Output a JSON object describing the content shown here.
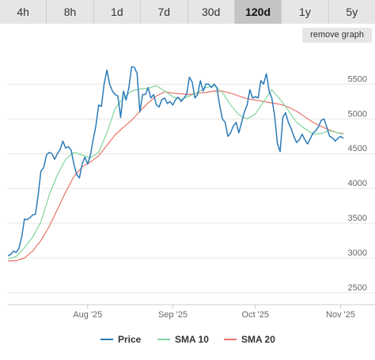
{
  "tabs": [
    {
      "label": "4h",
      "active": false
    },
    {
      "label": "8h",
      "active": false
    },
    {
      "label": "1d",
      "active": false
    },
    {
      "label": "7d",
      "active": false
    },
    {
      "label": "30d",
      "active": false
    },
    {
      "label": "120d",
      "active": true
    },
    {
      "label": "1y",
      "active": false
    },
    {
      "label": "5y",
      "active": false
    }
  ],
  "remove_graph_label": "remove graph",
  "colors": {
    "price": "#2b7bb9",
    "sma10": "#7fd49a",
    "sma20": "#e8746a"
  },
  "chart_data": {
    "type": "line",
    "title": "",
    "xlabel": "",
    "ylabel": "",
    "x_ticks": [
      {
        "label": "Aug '25",
        "date": "2025-08-01"
      },
      {
        "label": "Sep '25",
        "date": "2025-09-01"
      },
      {
        "label": "Oct '25",
        "date": "2025-10-01"
      },
      {
        "label": "Nov '25",
        "date": "2025-11-01"
      }
    ],
    "y_ticks": [
      2500,
      3000,
      3500,
      4000,
      4500,
      5000,
      5500
    ],
    "ylim": [
      2330,
      5970
    ],
    "xlim": [
      "2025-07-03",
      "2025-11-02"
    ],
    "grid": true,
    "legend_position": "bottom",
    "series": [
      {
        "name": "Price",
        "color_key": "price",
        "points": [
          [
            "2025-07-03",
            3030
          ],
          [
            "2025-07-04",
            3050
          ],
          [
            "2025-07-05",
            3100
          ],
          [
            "2025-07-06",
            3080
          ],
          [
            "2025-07-07",
            3140
          ],
          [
            "2025-07-08",
            3300
          ],
          [
            "2025-07-09",
            3560
          ],
          [
            "2025-07-10",
            3550
          ],
          [
            "2025-07-11",
            3580
          ],
          [
            "2025-07-12",
            3620
          ],
          [
            "2025-07-13",
            3630
          ],
          [
            "2025-07-14",
            3900
          ],
          [
            "2025-07-15",
            4250
          ],
          [
            "2025-07-16",
            4300
          ],
          [
            "2025-07-17",
            4480
          ],
          [
            "2025-07-18",
            4520
          ],
          [
            "2025-07-19",
            4500
          ],
          [
            "2025-07-20",
            4420
          ],
          [
            "2025-07-21",
            4500
          ],
          [
            "2025-07-22",
            4560
          ],
          [
            "2025-07-23",
            4680
          ],
          [
            "2025-07-24",
            4580
          ],
          [
            "2025-07-25",
            4600
          ],
          [
            "2025-07-26",
            4550
          ],
          [
            "2025-07-27",
            4350
          ],
          [
            "2025-07-28",
            4200
          ],
          [
            "2025-07-29",
            4150
          ],
          [
            "2025-07-30",
            4350
          ],
          [
            "2025-07-31",
            4450
          ],
          [
            "2025-08-01",
            4350
          ],
          [
            "2025-08-02",
            4480
          ],
          [
            "2025-08-03",
            4700
          ],
          [
            "2025-08-04",
            4900
          ],
          [
            "2025-08-05",
            5200
          ],
          [
            "2025-08-06",
            5180
          ],
          [
            "2025-08-07",
            5500
          ],
          [
            "2025-08-08",
            5700
          ],
          [
            "2025-08-09",
            5500
          ],
          [
            "2025-08-10",
            5400
          ],
          [
            "2025-08-11",
            5350
          ],
          [
            "2025-08-12",
            5330
          ],
          [
            "2025-08-13",
            5020
          ],
          [
            "2025-08-14",
            5400
          ],
          [
            "2025-08-15",
            5270
          ],
          [
            "2025-08-16",
            5450
          ],
          [
            "2025-08-17",
            5750
          ],
          [
            "2025-08-18",
            5740
          ],
          [
            "2025-08-19",
            5650
          ],
          [
            "2025-08-20",
            5100
          ],
          [
            "2025-08-21",
            5350
          ],
          [
            "2025-08-22",
            5350
          ],
          [
            "2025-08-23",
            5450
          ],
          [
            "2025-08-24",
            5300
          ],
          [
            "2025-08-25",
            5350
          ],
          [
            "2025-08-26",
            5200
          ],
          [
            "2025-08-27",
            5170
          ],
          [
            "2025-08-28",
            5280
          ],
          [
            "2025-08-29",
            5300
          ],
          [
            "2025-08-30",
            5220
          ],
          [
            "2025-08-31",
            5250
          ],
          [
            "2025-09-01",
            5200
          ],
          [
            "2025-09-02",
            5280
          ],
          [
            "2025-09-03",
            5310
          ],
          [
            "2025-09-04",
            5250
          ],
          [
            "2025-09-05",
            5300
          ],
          [
            "2025-09-06",
            5350
          ],
          [
            "2025-09-07",
            5600
          ],
          [
            "2025-09-08",
            5530
          ],
          [
            "2025-09-09",
            5300
          ],
          [
            "2025-09-10",
            5350
          ],
          [
            "2025-09-11",
            5550
          ],
          [
            "2025-09-12",
            5400
          ],
          [
            "2025-09-13",
            5500
          ],
          [
            "2025-09-14",
            5500
          ],
          [
            "2025-09-15",
            5450
          ],
          [
            "2025-09-16",
            5500
          ],
          [
            "2025-09-17",
            5450
          ],
          [
            "2025-09-18",
            5200
          ],
          [
            "2025-09-19",
            5000
          ],
          [
            "2025-09-20",
            4950
          ],
          [
            "2025-09-21",
            4750
          ],
          [
            "2025-09-22",
            4800
          ],
          [
            "2025-09-23",
            4900
          ],
          [
            "2025-09-24",
            4950
          ],
          [
            "2025-09-25",
            4800
          ],
          [
            "2025-09-26",
            4950
          ],
          [
            "2025-09-27",
            5100
          ],
          [
            "2025-09-28",
            5200
          ],
          [
            "2025-09-29",
            5420
          ],
          [
            "2025-09-30",
            5300
          ],
          [
            "2025-10-01",
            5320
          ],
          [
            "2025-10-02",
            5300
          ],
          [
            "2025-10-03",
            5550
          ],
          [
            "2025-10-04",
            5500
          ],
          [
            "2025-10-05",
            5650
          ],
          [
            "2025-10-06",
            5400
          ],
          [
            "2025-10-07",
            5300
          ],
          [
            "2025-10-08",
            5050
          ],
          [
            "2025-10-09",
            4650
          ],
          [
            "2025-10-10",
            4530
          ],
          [
            "2025-10-11",
            5020
          ],
          [
            "2025-10-12",
            5090
          ],
          [
            "2025-10-13",
            4950
          ],
          [
            "2025-10-14",
            4860
          ],
          [
            "2025-10-15",
            4750
          ],
          [
            "2025-10-16",
            4660
          ],
          [
            "2025-10-17",
            4700
          ],
          [
            "2025-10-18",
            4780
          ],
          [
            "2025-10-19",
            4700
          ],
          [
            "2025-10-20",
            4640
          ],
          [
            "2025-10-21",
            4720
          ],
          [
            "2025-10-22",
            4800
          ],
          [
            "2025-10-23",
            4830
          ],
          [
            "2025-10-24",
            4890
          ],
          [
            "2025-10-25",
            4980
          ],
          [
            "2025-10-26",
            5000
          ],
          [
            "2025-10-27",
            4880
          ],
          [
            "2025-10-28",
            4750
          ],
          [
            "2025-10-29",
            4730
          ],
          [
            "2025-10-30",
            4680
          ],
          [
            "2025-10-31",
            4720
          ],
          [
            "2025-11-01",
            4750
          ],
          [
            "2025-11-02",
            4720
          ]
        ]
      },
      {
        "name": "SMA 10",
        "color_key": "sma10",
        "points": [
          [
            "2025-07-03",
            2990
          ],
          [
            "2025-07-06",
            3020
          ],
          [
            "2025-07-09",
            3150
          ],
          [
            "2025-07-12",
            3300
          ],
          [
            "2025-07-15",
            3520
          ],
          [
            "2025-07-18",
            3900
          ],
          [
            "2025-07-21",
            4200
          ],
          [
            "2025-07-24",
            4420
          ],
          [
            "2025-07-27",
            4520
          ],
          [
            "2025-07-30",
            4480
          ],
          [
            "2025-08-02",
            4440
          ],
          [
            "2025-08-05",
            4520
          ],
          [
            "2025-08-08",
            4800
          ],
          [
            "2025-08-11",
            5150
          ],
          [
            "2025-08-14",
            5300
          ],
          [
            "2025-08-17",
            5400
          ],
          [
            "2025-08-20",
            5430
          ],
          [
            "2025-08-23",
            5440
          ],
          [
            "2025-08-26",
            5480
          ],
          [
            "2025-08-29",
            5400
          ],
          [
            "2025-09-01",
            5320
          ],
          [
            "2025-09-04",
            5280
          ],
          [
            "2025-09-07",
            5330
          ],
          [
            "2025-09-10",
            5380
          ],
          [
            "2025-09-13",
            5450
          ],
          [
            "2025-09-16",
            5480
          ],
          [
            "2025-09-19",
            5380
          ],
          [
            "2025-09-22",
            5200
          ],
          [
            "2025-09-25",
            5060
          ],
          [
            "2025-09-28",
            5000
          ],
          [
            "2025-10-01",
            5070
          ],
          [
            "2025-10-04",
            5250
          ],
          [
            "2025-10-07",
            5420
          ],
          [
            "2025-10-10",
            5280
          ],
          [
            "2025-10-13",
            5120
          ],
          [
            "2025-10-16",
            4950
          ],
          [
            "2025-10-19",
            4860
          ],
          [
            "2025-10-22",
            4780
          ],
          [
            "2025-10-25",
            4790
          ],
          [
            "2025-10-28",
            4830
          ],
          [
            "2025-10-31",
            4800
          ],
          [
            "2025-11-02",
            4780
          ]
        ]
      },
      {
        "name": "SMA 20",
        "color_key": "sma20",
        "points": [
          [
            "2025-07-03",
            2960
          ],
          [
            "2025-07-06",
            2960
          ],
          [
            "2025-07-09",
            3000
          ],
          [
            "2025-07-12",
            3100
          ],
          [
            "2025-07-15",
            3250
          ],
          [
            "2025-07-18",
            3450
          ],
          [
            "2025-07-21",
            3700
          ],
          [
            "2025-07-24",
            3950
          ],
          [
            "2025-07-27",
            4170
          ],
          [
            "2025-07-30",
            4310
          ],
          [
            "2025-08-02",
            4380
          ],
          [
            "2025-08-05",
            4470
          ],
          [
            "2025-08-08",
            4620
          ],
          [
            "2025-08-11",
            4770
          ],
          [
            "2025-08-14",
            4880
          ],
          [
            "2025-08-17",
            4980
          ],
          [
            "2025-08-20",
            5110
          ],
          [
            "2025-08-23",
            5230
          ],
          [
            "2025-08-26",
            5330
          ],
          [
            "2025-08-29",
            5390
          ],
          [
            "2025-09-01",
            5370
          ],
          [
            "2025-09-04",
            5360
          ],
          [
            "2025-09-07",
            5350
          ],
          [
            "2025-09-10",
            5370
          ],
          [
            "2025-09-13",
            5380
          ],
          [
            "2025-09-16",
            5400
          ],
          [
            "2025-09-19",
            5400
          ],
          [
            "2025-09-22",
            5370
          ],
          [
            "2025-09-25",
            5330
          ],
          [
            "2025-09-28",
            5290
          ],
          [
            "2025-10-01",
            5270
          ],
          [
            "2025-10-04",
            5250
          ],
          [
            "2025-10-07",
            5230
          ],
          [
            "2025-10-10",
            5210
          ],
          [
            "2025-10-13",
            5170
          ],
          [
            "2025-10-16",
            5110
          ],
          [
            "2025-10-19",
            5030
          ],
          [
            "2025-10-22",
            4950
          ],
          [
            "2025-10-25",
            4890
          ],
          [
            "2025-10-28",
            4840
          ],
          [
            "2025-10-31",
            4800
          ],
          [
            "2025-11-02",
            4790
          ]
        ]
      }
    ]
  }
}
